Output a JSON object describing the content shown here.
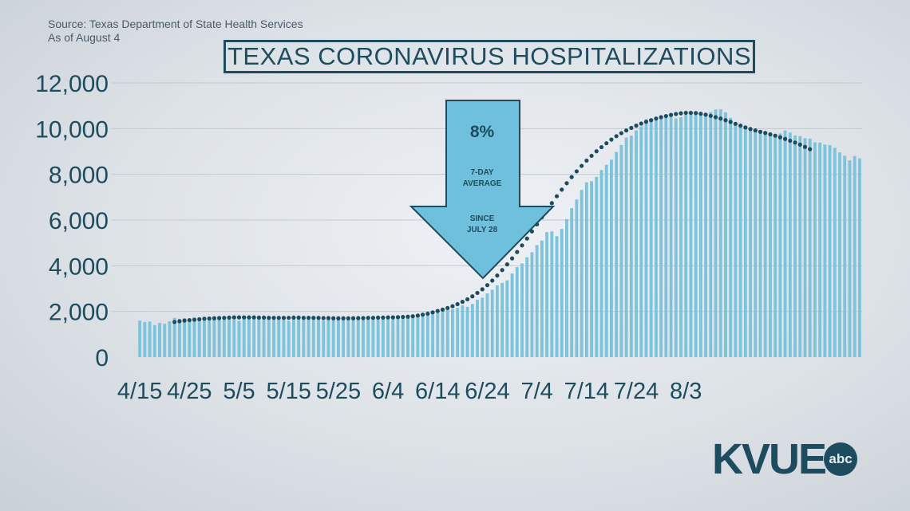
{
  "source": "Source: Texas Department of State Health Services",
  "as_of": "As of August 4",
  "title": "TEXAS CORONAVIRUS HOSPITALIZATIONS",
  "callout": {
    "percent": "8%",
    "line1": "7-DAY",
    "line2": "AVERAGE",
    "line3": "SINCE",
    "line4": "JULY 28"
  },
  "logo": {
    "name": "KVUE",
    "network": "abc"
  },
  "colors": {
    "bar": "#7ec3dc",
    "avg_dot": "#1d4c5e",
    "text": "#1d4c5e",
    "arrow": "#6fc0dc"
  },
  "chart_data": {
    "type": "bar",
    "title": "TEXAS CORONAVIRUS HOSPITALIZATIONS",
    "xlabel": "",
    "ylabel": "",
    "ylim": [
      0,
      12000
    ],
    "yticks": [
      0,
      2000,
      4000,
      6000,
      8000,
      10000,
      12000
    ],
    "ytick_labels": [
      "0",
      "2,000",
      "4,000",
      "6,000",
      "8,000",
      "10,000",
      "12,000"
    ],
    "xtick_labels": [
      "4/15",
      "4/25",
      "5/5",
      "5/15",
      "5/25",
      "6/4",
      "6/14",
      "6/24",
      "7/4",
      "7/14",
      "7/24",
      "8/3"
    ],
    "xtick_index": [
      0,
      10,
      20,
      30,
      40,
      50,
      60,
      70,
      80,
      90,
      100,
      110
    ],
    "grid": true,
    "series": [
      {
        "type": "bar",
        "values": [
          1600,
          1530,
          1560,
          1400,
          1500,
          1460,
          1570,
          1720,
          1680,
          1700,
          1650,
          1720,
          1690,
          1680,
          1770,
          1790,
          1800,
          1720,
          1680,
          1640,
          1590,
          1770,
          1700,
          1790,
          1760,
          1780,
          1810,
          1750,
          1680,
          1660,
          1590,
          1720,
          1700,
          1750,
          1800,
          1690,
          1680,
          1600,
          1680,
          1720,
          1650,
          1750,
          1700,
          1790,
          1700,
          1630,
          1650,
          1740,
          1770,
          1700,
          1780,
          1800,
          1720,
          1750,
          1770,
          1740,
          1830,
          1800,
          1820,
          1890,
          2000,
          2110,
          2060,
          2100,
          2160,
          2270,
          2200,
          2330,
          2510,
          2600,
          2790,
          2950,
          3140,
          3250,
          3360,
          3660,
          3940,
          4100,
          4370,
          4590,
          4900,
          5100,
          5470,
          5500,
          5290,
          5610,
          6040,
          6520,
          6900,
          7320,
          7650,
          7700,
          7890,
          8190,
          8420,
          8640,
          8980,
          9280,
          9610,
          9690,
          9920,
          10100,
          10410,
          10410,
          10400,
          10520,
          10570,
          10540,
          10450,
          10500,
          10620,
          10620,
          10690,
          10610,
          10570,
          10730,
          10840,
          10850,
          10710,
          10470,
          10240,
          10120,
          10080,
          10050,
          9970,
          9840,
          9830,
          9750,
          9690,
          9790,
          9920,
          9830,
          9700,
          9670,
          9580,
          9560,
          9400,
          9390,
          9300,
          9280,
          9160,
          8960,
          8810,
          8610,
          8800,
          8700
        ],
        "note": "daily hospitalizations"
      },
      {
        "type": "dotted-line",
        "start_index": 7,
        "values": [
          1540,
          1570,
          1600,
          1620,
          1640,
          1660,
          1680,
          1690,
          1700,
          1710,
          1720,
          1730,
          1740,
          1740,
          1740,
          1740,
          1740,
          1730,
          1730,
          1720,
          1720,
          1720,
          1720,
          1720,
          1730,
          1730,
          1720,
          1720,
          1720,
          1720,
          1710,
          1710,
          1700,
          1700,
          1700,
          1700,
          1700,
          1710,
          1710,
          1720,
          1720,
          1730,
          1730,
          1740,
          1740,
          1750,
          1760,
          1770,
          1790,
          1820,
          1860,
          1900,
          1960,
          2020,
          2080,
          2150,
          2230,
          2320,
          2420,
          2530,
          2660,
          2810,
          2970,
          3150,
          3350,
          3570,
          3810,
          4060,
          4320,
          4600,
          4890,
          5190,
          5500,
          5810,
          6120,
          6430,
          6740,
          7040,
          7330,
          7610,
          7880,
          8130,
          8370,
          8600,
          8810,
          9010,
          9190,
          9360,
          9520,
          9670,
          9800,
          9920,
          10030,
          10130,
          10220,
          10300,
          10370,
          10440,
          10500,
          10550,
          10600,
          10640,
          10670,
          10690,
          10690,
          10680,
          10650,
          10610,
          10560,
          10500,
          10440,
          10370,
          10290,
          10210,
          10130,
          10050,
          9980,
          9920,
          9860,
          9810,
          9750,
          9690,
          9620,
          9550,
          9470,
          9390,
          9300,
          9200,
          9100
        ]
      }
    ]
  }
}
